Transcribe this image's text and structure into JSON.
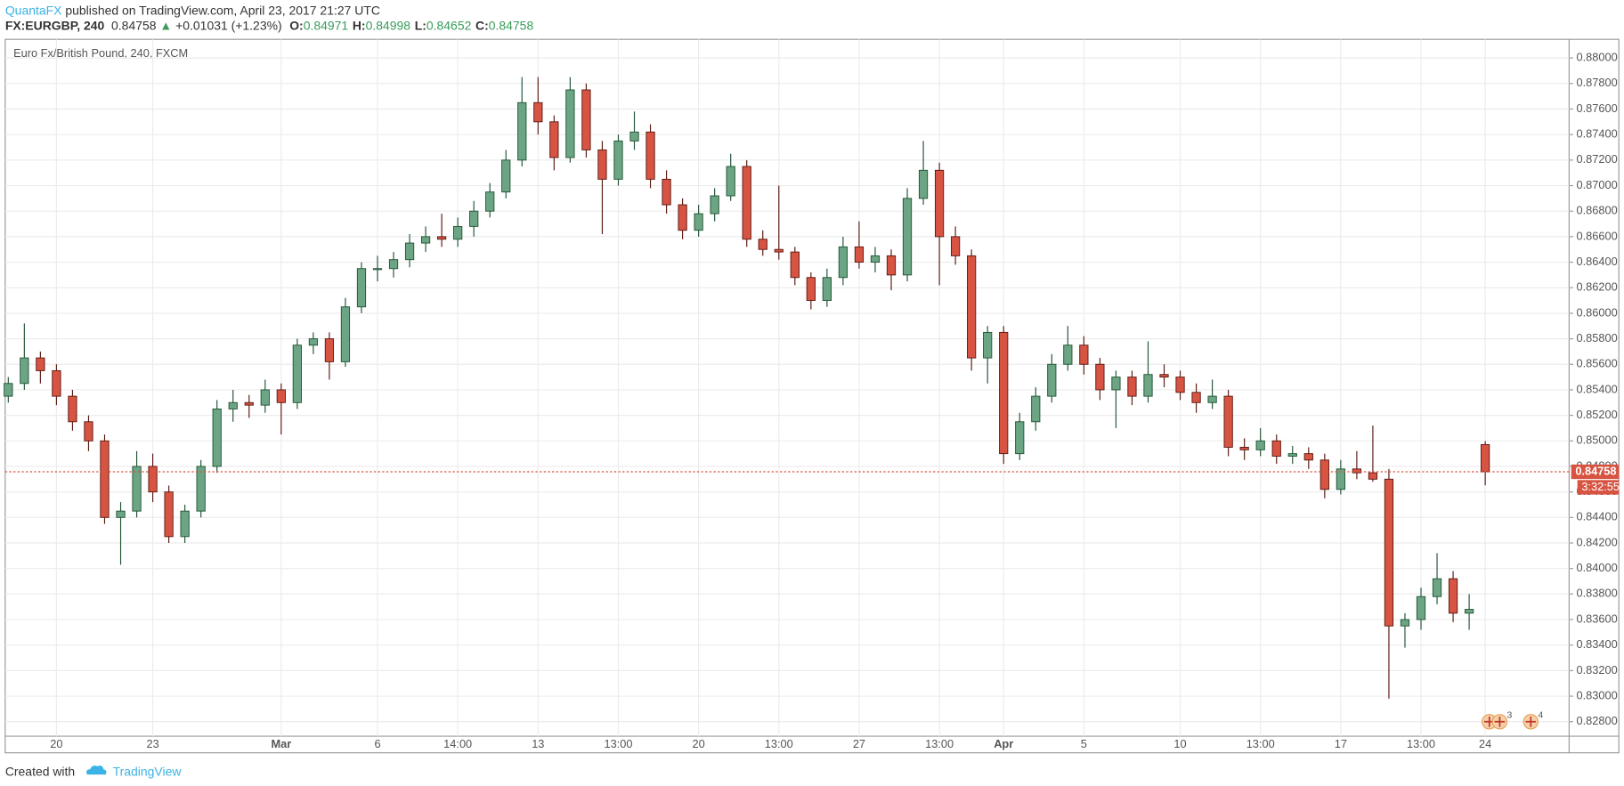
{
  "header": {
    "publisher": "QuantaFX",
    "published": "published on TradingView.com, April 23, 2017 21:27 UTC",
    "symbol": "FX:EURGBP, 240",
    "last": 0.84758,
    "arrow": "▲",
    "change": "+0.01031 (+1.23%)",
    "ohlc": [
      {
        "label": "O:",
        "value": 0.84971
      },
      {
        "label": "H:",
        "value": 0.84998
      },
      {
        "label": "L:",
        "value": 0.84652
      },
      {
        "label": "C:",
        "value": 0.84758
      }
    ]
  },
  "chart_data": {
    "type": "candlestick",
    "title": "Euro Fx/British Pound, 240, FXCM",
    "up_color": "#6ba583",
    "down_color": "#d75442",
    "grid": true,
    "categories": [
      null,
      null,
      null,
      "20",
      null,
      null,
      null,
      null,
      null,
      "23",
      null,
      null,
      null,
      null,
      null,
      null,
      null,
      "Mar",
      null,
      null,
      null,
      null,
      null,
      "6",
      null,
      null,
      null,
      null,
      "14:00",
      null,
      null,
      null,
      null,
      "13",
      null,
      null,
      null,
      null,
      "13:00",
      null,
      null,
      null,
      null,
      "20",
      null,
      null,
      null,
      null,
      "13:00",
      null,
      null,
      null,
      null,
      "27",
      null,
      null,
      null,
      null,
      "13:00",
      null,
      null,
      null,
      "Apr",
      null,
      null,
      null,
      null,
      "5",
      null,
      null,
      null,
      null,
      null,
      "10",
      null,
      null,
      null,
      null,
      "13:00",
      null,
      null,
      null,
      null,
      "17",
      null,
      null,
      null,
      null,
      "13:00",
      null,
      null,
      null,
      "24"
    ],
    "open": [
      0.8535,
      0.8545,
      0.8565,
      0.8555,
      0.8535,
      0.8515,
      0.85,
      0.844,
      0.8445,
      0.848,
      0.846,
      0.8425,
      0.8445,
      0.848,
      0.8525,
      0.853,
      0.8528,
      0.854,
      0.853,
      0.8575,
      0.858,
      0.8562,
      0.8605,
      0.8635,
      0.8635,
      0.8642,
      0.8655,
      0.866,
      0.8658,
      0.8668,
      0.868,
      0.8695,
      0.872,
      0.8765,
      0.875,
      0.8722,
      0.8775,
      0.8728,
      0.8705,
      0.8735,
      0.8742,
      0.8705,
      0.8685,
      0.8665,
      0.8678,
      0.8692,
      0.8715,
      0.8658,
      0.865,
      0.8648,
      0.8628,
      0.861,
      0.8628,
      0.8652,
      0.864,
      0.8645,
      0.863,
      0.869,
      0.8712,
      0.866,
      0.8645,
      0.8565,
      0.8585,
      0.849,
      0.8515,
      0.8535,
      0.856,
      0.8575,
      0.856,
      0.854,
      0.855,
      0.8535,
      0.8552,
      0.855,
      0.8538,
      0.853,
      0.8535,
      0.8495,
      0.8493,
      0.85,
      0.8488,
      0.849,
      0.8485,
      0.8462,
      0.8478,
      0.8475,
      0.847,
      0.8355,
      0.836,
      0.8378,
      0.8392,
      0.8365,
      0.84971
    ],
    "high": [
      0.855,
      0.8592,
      0.857,
      0.856,
      0.854,
      0.852,
      0.8505,
      0.8452,
      0.8492,
      0.849,
      0.8465,
      0.845,
      0.8485,
      0.8532,
      0.854,
      0.8536,
      0.8548,
      0.8545,
      0.858,
      0.8585,
      0.8585,
      0.8612,
      0.864,
      0.8645,
      0.8648,
      0.8662,
      0.8668,
      0.8678,
      0.8675,
      0.8688,
      0.8702,
      0.8728,
      0.8785,
      0.8785,
      0.8755,
      0.8785,
      0.878,
      0.8735,
      0.874,
      0.8758,
      0.8748,
      0.8712,
      0.869,
      0.8685,
      0.8698,
      0.8725,
      0.872,
      0.8665,
      0.87,
      0.8652,
      0.8632,
      0.8635,
      0.866,
      0.8672,
      0.8652,
      0.865,
      0.8698,
      0.8735,
      0.8718,
      0.8668,
      0.865,
      0.859,
      0.859,
      0.8522,
      0.8542,
      0.8568,
      0.859,
      0.8582,
      0.8565,
      0.8555,
      0.8555,
      0.8578,
      0.856,
      0.8555,
      0.8545,
      0.8548,
      0.854,
      0.8502,
      0.851,
      0.8505,
      0.8496,
      0.8495,
      0.849,
      0.8485,
      0.8492,
      0.8512,
      0.8478,
      0.8365,
      0.8385,
      0.8412,
      0.8398,
      0.838,
      0.84998
    ],
    "low": [
      0.853,
      0.854,
      0.8545,
      0.8528,
      0.8508,
      0.8492,
      0.8435,
      0.8403,
      0.844,
      0.8452,
      0.842,
      0.842,
      0.844,
      0.8475,
      0.8515,
      0.8518,
      0.8522,
      0.8505,
      0.8525,
      0.8568,
      0.8548,
      0.8558,
      0.86,
      0.8625,
      0.8628,
      0.8636,
      0.8648,
      0.8652,
      0.8652,
      0.866,
      0.8675,
      0.869,
      0.8715,
      0.874,
      0.8712,
      0.8718,
      0.8722,
      0.8662,
      0.87,
      0.8728,
      0.8698,
      0.8678,
      0.8658,
      0.866,
      0.8672,
      0.8688,
      0.8652,
      0.8645,
      0.8642,
      0.8622,
      0.8603,
      0.8605,
      0.8622,
      0.8635,
      0.8632,
      0.8618,
      0.8625,
      0.8685,
      0.8622,
      0.8638,
      0.8555,
      0.8545,
      0.8482,
      0.8485,
      0.8508,
      0.853,
      0.8555,
      0.8552,
      0.8532,
      0.851,
      0.8528,
      0.853,
      0.8542,
      0.8532,
      0.8522,
      0.8525,
      0.8488,
      0.8485,
      0.8488,
      0.8482,
      0.8482,
      0.8478,
      0.8455,
      0.8458,
      0.847,
      0.8468,
      0.8298,
      0.8338,
      0.8352,
      0.8372,
      0.8358,
      0.8352,
      0.84652
    ],
    "close": [
      0.8545,
      0.8565,
      0.8555,
      0.8535,
      0.8515,
      0.85,
      0.844,
      0.8445,
      0.848,
      0.846,
      0.8425,
      0.8445,
      0.848,
      0.8525,
      0.853,
      0.8528,
      0.854,
      0.853,
      0.8575,
      0.858,
      0.8562,
      0.8605,
      0.8635,
      0.8635,
      0.8642,
      0.8655,
      0.866,
      0.8658,
      0.8668,
      0.868,
      0.8695,
      0.872,
      0.8765,
      0.875,
      0.8722,
      0.8775,
      0.8728,
      0.8705,
      0.8735,
      0.8742,
      0.8705,
      0.8685,
      0.8665,
      0.8678,
      0.8692,
      0.8715,
      0.8658,
      0.865,
      0.8648,
      0.8628,
      0.861,
      0.8628,
      0.8652,
      0.864,
      0.8645,
      0.863,
      0.869,
      0.8712,
      0.866,
      0.8645,
      0.8565,
      0.8585,
      0.849,
      0.8515,
      0.8535,
      0.856,
      0.8575,
      0.856,
      0.854,
      0.855,
      0.8535,
      0.8552,
      0.855,
      0.8538,
      0.853,
      0.8535,
      0.8495,
      0.8493,
      0.85,
      0.8488,
      0.849,
      0.8485,
      0.8462,
      0.8478,
      0.8475,
      0.847,
      0.8355,
      0.836,
      0.8378,
      0.8392,
      0.8365,
      0.8368,
      0.84758
    ],
    "ylim": [
      0.82686,
      0.88146
    ],
    "yticks": [
      {
        "value": 0.828,
        "label": "0.82800"
      },
      {
        "value": 0.83,
        "label": "0.83000"
      },
      {
        "value": 0.832,
        "label": "0.83200"
      },
      {
        "value": 0.834,
        "label": "0.83400"
      },
      {
        "value": 0.836,
        "label": "0.83600"
      },
      {
        "value": 0.838,
        "label": "0.83800"
      },
      {
        "value": 0.84,
        "label": "0.84000"
      },
      {
        "value": 0.842,
        "label": "0.84200"
      },
      {
        "value": 0.844,
        "label": "0.84400"
      },
      {
        "value": 0.846,
        "label": "0.84600"
      },
      {
        "value": 0.848,
        "label": "0.84800"
      },
      {
        "value": 0.85,
        "label": "0.85000"
      },
      {
        "value": 0.852,
        "label": "0.85200"
      },
      {
        "value": 0.854,
        "label": "0.85400"
      },
      {
        "value": 0.856,
        "label": "0.85600"
      },
      {
        "value": 0.858,
        "label": "0.85800"
      },
      {
        "value": 0.86,
        "label": "0.86000"
      },
      {
        "value": 0.862,
        "label": "0.86200"
      },
      {
        "value": 0.864,
        "label": "0.86400"
      },
      {
        "value": 0.866,
        "label": "0.86600"
      },
      {
        "value": 0.868,
        "label": "0.86800"
      },
      {
        "value": 0.87,
        "label": "0.87000"
      },
      {
        "value": 0.872,
        "label": "0.87200"
      },
      {
        "value": 0.874,
        "label": "0.87400"
      },
      {
        "value": 0.876,
        "label": "0.87600"
      },
      {
        "value": 0.878,
        "label": "0.87800"
      },
      {
        "value": 0.88,
        "label": "0.88000"
      }
    ],
    "countdown": "3:32:55",
    "events": [
      "3",
      "4"
    ]
  },
  "footer": {
    "created": "Created with",
    "brand": "TradingView"
  }
}
